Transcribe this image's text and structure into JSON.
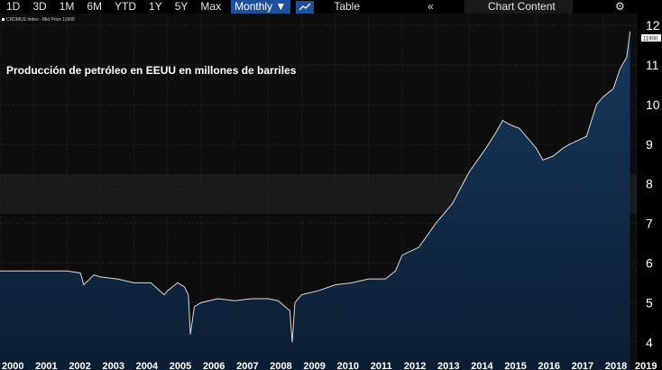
{
  "toolbar": {
    "ranges": [
      "1D",
      "3D",
      "1M",
      "6M",
      "YTD",
      "1Y",
      "5Y",
      "Max"
    ],
    "frequency": "Monthly ▼",
    "table_label": "Table",
    "collapse_glyph": "«",
    "chart_content_label": "Chart Content",
    "settings_glyph": "⚙"
  },
  "legend": {
    "text": "CRDMUS Index - Mid Price 11900"
  },
  "last_value_label": "11900",
  "chart_data": {
    "type": "area",
    "title": "Producción de petróleo en EEUU en millones de barriles",
    "xlabel": "",
    "ylabel": "",
    "x_ticks": [
      "2000",
      "2001",
      "2002",
      "2003",
      "2004",
      "2005",
      "2006",
      "2007",
      "2008",
      "2009",
      "2010",
      "2011",
      "2012",
      "2013",
      "2014",
      "2015",
      "2016",
      "2017",
      "2018",
      "2019"
    ],
    "y_ticks": [
      "4",
      "5",
      "6",
      "7",
      "8",
      "9",
      "10",
      "11",
      "12"
    ],
    "xlim": [
      2000.0,
      2019.0
    ],
    "ylim": [
      3.3,
      12.3
    ],
    "y_axis_position": "right",
    "grid": true,
    "series": [
      {
        "name": "",
        "x": [
          2000.0,
          2000.5,
          2001.0,
          2001.5,
          2002.0,
          2002.4,
          2002.5,
          2002.8,
          2003.0,
          2003.5,
          2004.0,
          2004.5,
          2004.9,
          2005.0,
          2005.3,
          2005.5,
          2005.62,
          2005.68,
          2005.8,
          2006.0,
          2006.5,
          2007.0,
          2007.5,
          2008.0,
          2008.3,
          2008.5,
          2008.65,
          2008.72,
          2008.8,
          2009.0,
          2009.5,
          2010.0,
          2010.5,
          2011.0,
          2011.5,
          2011.8,
          2012.0,
          2012.5,
          2013.0,
          2013.5,
          2014.0,
          2014.5,
          2014.8,
          2015.0,
          2015.2,
          2015.5,
          2015.8,
          2016.0,
          2016.2,
          2016.5,
          2016.8,
          2017.0,
          2017.5,
          2017.8,
          2018.0,
          2018.3,
          2018.5,
          2018.7,
          2018.8
        ],
        "y": [
          5.8,
          5.8,
          5.8,
          5.8,
          5.8,
          5.75,
          5.45,
          5.7,
          5.65,
          5.6,
          5.5,
          5.5,
          5.2,
          5.3,
          5.5,
          5.4,
          5.2,
          4.2,
          4.9,
          5.0,
          5.1,
          5.05,
          5.1,
          5.1,
          5.05,
          4.9,
          4.8,
          4.0,
          5.0,
          5.2,
          5.3,
          5.45,
          5.5,
          5.6,
          5.6,
          5.8,
          6.2,
          6.4,
          7.0,
          7.5,
          8.3,
          8.9,
          9.3,
          9.6,
          9.5,
          9.4,
          9.1,
          8.9,
          8.6,
          8.7,
          8.9,
          9.0,
          9.2,
          10.0,
          10.2,
          10.4,
          10.9,
          11.2,
          11.85
        ]
      }
    ]
  }
}
